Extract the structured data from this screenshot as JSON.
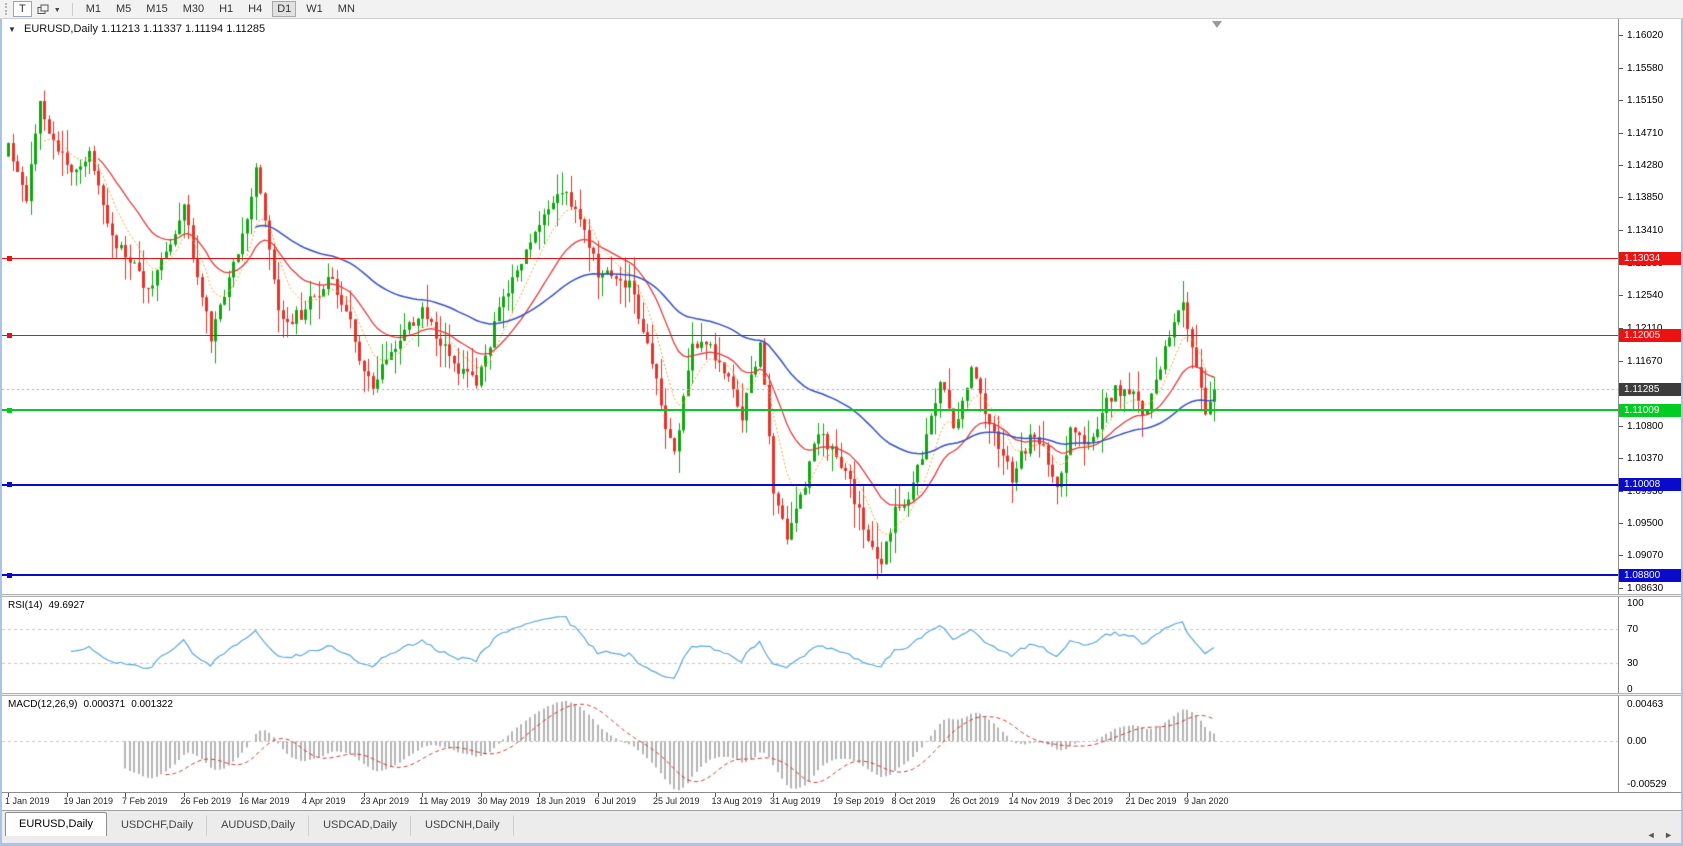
{
  "toolbar": {
    "tick_button": "T",
    "timeframes": [
      "M1",
      "M5",
      "M15",
      "M30",
      "H1",
      "H4",
      "D1",
      "W1",
      "MN"
    ],
    "active_timeframe": "D1"
  },
  "window": {
    "title_symbol": "EURUSD,Daily",
    "title_quotes": "1.11213 1.11337 1.11194 1.11285"
  },
  "price_axis": {
    "ticks": [
      "1.16020",
      "1.15580",
      "1.15150",
      "1.14710",
      "1.14280",
      "1.13850",
      "1.13410",
      "1.12980",
      "1.12540",
      "1.12110",
      "1.11670",
      "1.11240",
      "1.10800",
      "1.10370",
      "1.09930",
      "1.09500",
      "1.09070",
      "1.08630"
    ],
    "current_price": "1.11285",
    "current_badge_color": "#3c3c3c"
  },
  "levels": [
    {
      "price": 1.13034,
      "label": "1.13034",
      "color": "#ee1111",
      "thickness": 1
    },
    {
      "price": 1.12005,
      "label": "1.12005",
      "color": "#ee1111",
      "thickness": 1
    },
    {
      "price": 1.11009,
      "label": "1.11009",
      "color": "#00cc22",
      "thickness": 2
    },
    {
      "price": 1.10008,
      "label": "1.10008",
      "color": "#0a0acc",
      "thickness": 2
    },
    {
      "price": 1.088,
      "label": "1.08800",
      "color": "#0a0acc",
      "thickness": 2
    }
  ],
  "rsi": {
    "name": "RSI(14)",
    "value": "49.6927",
    "axis": [
      "100",
      "70",
      "30",
      "0"
    ],
    "upper": 70,
    "lower": 30,
    "color": "#5aa7de"
  },
  "macd": {
    "name": "MACD(12,26,9)",
    "main": "0.000371",
    "signal": "0.001322",
    "axis_top": "0.00463",
    "axis_zero": "0.00",
    "axis_bottom": "-0.00529",
    "hist_color": "#b4b4b4",
    "signal_color": "#d23a3a"
  },
  "timeline": {
    "dates": [
      {
        "bar": 0,
        "label": "1 Jan 2019"
      },
      {
        "bar": 13,
        "label": "19 Jan 2019"
      },
      {
        "bar": 26,
        "label": "7 Feb 2019"
      },
      {
        "bar": 39,
        "label": "26 Feb 2019"
      },
      {
        "bar": 52,
        "label": "16 Mar 2019"
      },
      {
        "bar": 66,
        "label": "4 Apr 2019"
      },
      {
        "bar": 79,
        "label": "23 Apr 2019"
      },
      {
        "bar": 92,
        "label": "11 May 2019"
      },
      {
        "bar": 105,
        "label": "30 May 2019"
      },
      {
        "bar": 118,
        "label": "18 Jun 2019"
      },
      {
        "bar": 131,
        "label": "6 Jul 2019"
      },
      {
        "bar": 144,
        "label": "25 Jul 2019"
      },
      {
        "bar": 157,
        "label": "13 Aug 2019"
      },
      {
        "bar": 170,
        "label": "31 Aug 2019"
      },
      {
        "bar": 184,
        "label": "19 Sep 2019"
      },
      {
        "bar": 197,
        "label": "8 Oct 2019"
      },
      {
        "bar": 210,
        "label": "26 Oct 2019"
      },
      {
        "bar": 223,
        "label": "14 Nov 2019"
      },
      {
        "bar": 236,
        "label": "3 Dec 2019"
      },
      {
        "bar": 249,
        "label": "21 Dec 2019"
      },
      {
        "bar": 262,
        "label": "9 Jan 2020"
      }
    ]
  },
  "tabs": {
    "items": [
      {
        "label": "EURUSD,Daily",
        "active": true
      },
      {
        "label": "USDCHF,Daily",
        "active": false
      },
      {
        "label": "AUDUSD,Daily",
        "active": false
      },
      {
        "label": "USDCAD,Daily",
        "active": false
      },
      {
        "label": "USDCNH,Daily",
        "active": false
      }
    ],
    "scroll_left": "◄",
    "scroll_right": "►"
  },
  "chart_data": {
    "type": "candlestick",
    "symbol": "EURUSD",
    "timeframe": "Daily",
    "quote": {
      "open": 1.11213,
      "high": 1.11337,
      "low": 1.11194,
      "close": 1.11285
    },
    "bars": 269,
    "y_range": [
      1.0853,
      1.1624
    ],
    "colors": {
      "up": "#12a512",
      "down": "#e2342b"
    },
    "horizontal_levels": [
      1.13034,
      1.12005,
      1.11009,
      1.10008,
      1.088
    ],
    "moving_averages": [
      {
        "period": 8,
        "color": "#efa63a",
        "width": 1,
        "style": "dot"
      },
      {
        "period": 20,
        "color": "#e23b3b",
        "width": 1.3,
        "style": "solid"
      },
      {
        "period": 55,
        "color": "#3450c4",
        "width": 1.5,
        "style": "solid"
      }
    ],
    "rsi": {
      "period": 14,
      "last_value": 49.6927
    },
    "macd": {
      "fast": 12,
      "slow": 26,
      "signal": 9,
      "last_main": 0.000371,
      "last_signal": 0.001322
    },
    "x_axis_labels": [
      "1 Jan 2019",
      "19 Jan 2019",
      "7 Feb 2019",
      "26 Feb 2019",
      "16 Mar 2019",
      "4 Apr 2019",
      "23 Apr 2019",
      "11 May 2019",
      "30 May 2019",
      "18 Jun 2019",
      "6 Jul 2019",
      "25 Jul 2019",
      "13 Aug 2019",
      "31 Aug 2019",
      "19 Sep 2019",
      "8 Oct 2019",
      "26 Oct 2019",
      "14 Nov 2019",
      "3 Dec 2019",
      "21 Dec 2019",
      "9 Jan 2020"
    ],
    "close_anchors": [
      [
        0,
        1.1455
      ],
      [
        4,
        1.1392
      ],
      [
        7,
        1.1528
      ],
      [
        9,
        1.1478
      ],
      [
        13,
        1.1422
      ],
      [
        18,
        1.1438
      ],
      [
        24,
        1.1328
      ],
      [
        31,
        1.1258
      ],
      [
        39,
        1.1368
      ],
      [
        45,
        1.1192
      ],
      [
        52,
        1.1336
      ],
      [
        55,
        1.1428
      ],
      [
        60,
        1.1222
      ],
      [
        66,
        1.1232
      ],
      [
        72,
        1.1288
      ],
      [
        81,
        1.1122
      ],
      [
        86,
        1.1188
      ],
      [
        92,
        1.1228
      ],
      [
        99,
        1.1162
      ],
      [
        104,
        1.1132
      ],
      [
        110,
        1.1252
      ],
      [
        118,
        1.1342
      ],
      [
        122,
        1.1392
      ],
      [
        127,
        1.1362
      ],
      [
        131,
        1.1282
      ],
      [
        138,
        1.1272
      ],
      [
        144,
        1.1142
      ],
      [
        148,
        1.1042
      ],
      [
        152,
        1.1198
      ],
      [
        157,
        1.1172
      ],
      [
        163,
        1.1092
      ],
      [
        167,
        1.1188
      ],
      [
        170,
        1.0992
      ],
      [
        173,
        1.0932
      ],
      [
        180,
        1.1068
      ],
      [
        184,
        1.1042
      ],
      [
        190,
        1.0942
      ],
      [
        194,
        1.0892
      ],
      [
        197,
        1.0962
      ],
      [
        203,
        1.1032
      ],
      [
        207,
        1.1142
      ],
      [
        210,
        1.1082
      ],
      [
        214,
        1.1158
      ],
      [
        219,
        1.1072
      ],
      [
        223,
        1.1012
      ],
      [
        228,
        1.1072
      ],
      [
        233,
        1.1002
      ],
      [
        236,
        1.1078
      ],
      [
        241,
        1.1062
      ],
      [
        246,
        1.1128
      ],
      [
        249,
        1.1118
      ],
      [
        253,
        1.1092
      ],
      [
        258,
        1.1198
      ],
      [
        261,
        1.1236
      ],
      [
        264,
        1.1162
      ],
      [
        266,
        1.1096
      ],
      [
        268,
        1.11285
      ]
    ]
  }
}
